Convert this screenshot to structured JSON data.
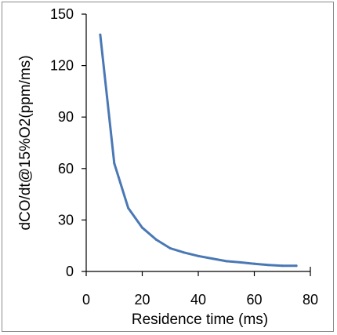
{
  "chart_data": {
    "type": "line",
    "title": "",
    "xlabel": "Residence time (ms)",
    "ylabel": "dCO/dt@15%O2(ppm/ms)",
    "xlim": [
      0,
      80
    ],
    "ylim": [
      0,
      150
    ],
    "x_ticks": [
      "0",
      "20",
      "40",
      "60",
      "80"
    ],
    "y_ticks": [
      "0",
      "30",
      "60",
      "90",
      "120",
      "150"
    ],
    "grid": false,
    "legend": "none",
    "series": [
      {
        "color": "#4a78b5",
        "x": [
          5,
          10,
          15,
          20,
          25,
          30,
          35,
          40,
          45,
          50,
          55,
          60,
          65,
          70,
          75
        ],
        "y": [
          138,
          63,
          37,
          25.5,
          18.5,
          13.5,
          11,
          9,
          7.5,
          6,
          5.3,
          4.5,
          3.8,
          3.3,
          3.3
        ]
      }
    ]
  }
}
